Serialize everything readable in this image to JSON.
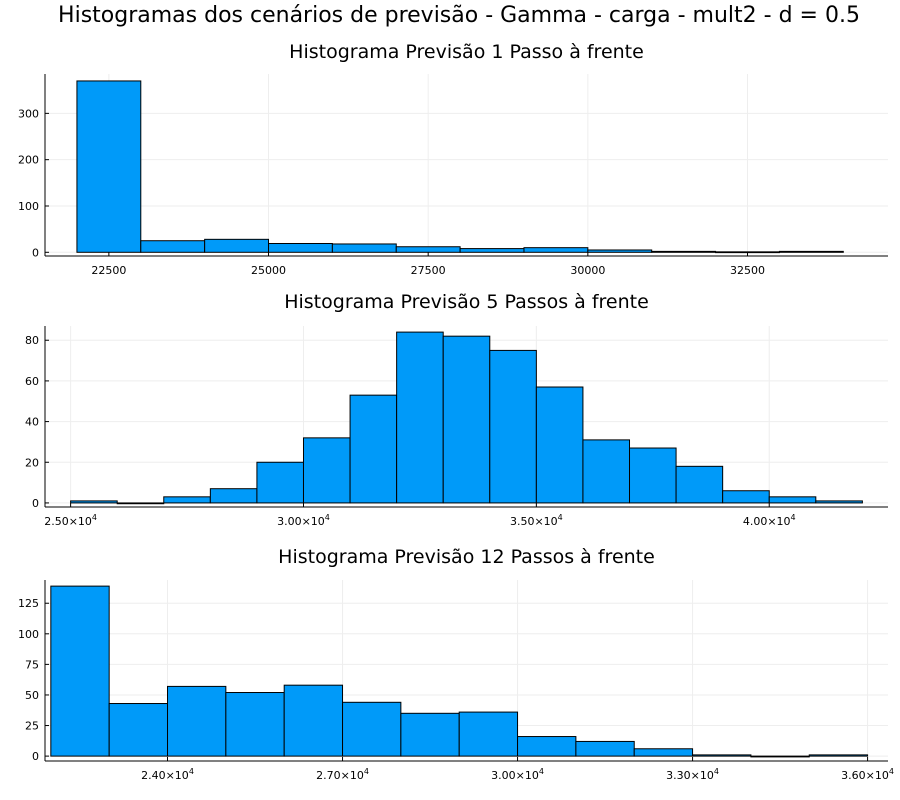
{
  "figure": {
    "suptitle": "Histogramas dos cenários de previsão - Gamma - carga - mult2 - d = 0.5",
    "bar_color": "#009AF9",
    "bar_edge": "#000000",
    "grid_color": "#EEEEEE"
  },
  "chart_data": [
    {
      "type": "bar",
      "title": "Histograma Previsão 1 Passo à frente",
      "xlabel": "",
      "ylabel": "",
      "xlim": [
        21500,
        34700
      ],
      "ylim": [
        -8,
        385
      ],
      "x_ticks": [
        22500,
        25000,
        27500,
        30000,
        32500
      ],
      "x_tick_labels": [
        "22500",
        "25000",
        "27500",
        "30000",
        "32500"
      ],
      "x_tick_format": "plain",
      "y_ticks": [
        0,
        100,
        200,
        300
      ],
      "grid": true,
      "bins": [
        {
          "x0": 22000,
          "x1": 23000,
          "count": 370
        },
        {
          "x0": 23000,
          "x1": 24000,
          "count": 25
        },
        {
          "x0": 24000,
          "x1": 25000,
          "count": 28
        },
        {
          "x0": 25000,
          "x1": 26000,
          "count": 19
        },
        {
          "x0": 26000,
          "x1": 27000,
          "count": 18
        },
        {
          "x0": 27000,
          "x1": 28000,
          "count": 12
        },
        {
          "x0": 28000,
          "x1": 29000,
          "count": 8
        },
        {
          "x0": 29000,
          "x1": 30000,
          "count": 10
        },
        {
          "x0": 30000,
          "x1": 31000,
          "count": 5
        },
        {
          "x0": 31000,
          "x1": 32000,
          "count": 2
        },
        {
          "x0": 32000,
          "x1": 33000,
          "count": 1
        },
        {
          "x0": 33000,
          "x1": 34000,
          "count": 2
        }
      ]
    },
    {
      "type": "bar",
      "title": "Histograma Previsão 5 Passos à frente",
      "xlabel": "",
      "ylabel": "",
      "xlim": [
        24450,
        42550
      ],
      "ylim": [
        -2,
        87
      ],
      "x_ticks": [
        25000,
        30000,
        35000,
        40000
      ],
      "x_tick_labels": [
        "2.50×10",
        "3.00×10",
        "3.50×10",
        "4.00×10"
      ],
      "x_tick_exponent": "4",
      "x_tick_format": "sci",
      "y_ticks": [
        0,
        20,
        40,
        60,
        80
      ],
      "grid": true,
      "bins": [
        {
          "x0": 25000,
          "x1": 26000,
          "count": 1
        },
        {
          "x0": 26000,
          "x1": 27000,
          "count": 0
        },
        {
          "x0": 27000,
          "x1": 28000,
          "count": 3
        },
        {
          "x0": 28000,
          "x1": 29000,
          "count": 7
        },
        {
          "x0": 29000,
          "x1": 30000,
          "count": 20
        },
        {
          "x0": 30000,
          "x1": 31000,
          "count": 32
        },
        {
          "x0": 31000,
          "x1": 32000,
          "count": 53
        },
        {
          "x0": 32000,
          "x1": 33000,
          "count": 84
        },
        {
          "x0": 33000,
          "x1": 34000,
          "count": 82
        },
        {
          "x0": 34000,
          "x1": 35000,
          "count": 75
        },
        {
          "x0": 35000,
          "x1": 36000,
          "count": 57
        },
        {
          "x0": 36000,
          "x1": 37000,
          "count": 31
        },
        {
          "x0": 37000,
          "x1": 38000,
          "count": 27
        },
        {
          "x0": 38000,
          "x1": 39000,
          "count": 18
        },
        {
          "x0": 39000,
          "x1": 40000,
          "count": 6
        },
        {
          "x0": 40000,
          "x1": 41000,
          "count": 3
        },
        {
          "x0": 41000,
          "x1": 42000,
          "count": 1
        }
      ]
    },
    {
      "type": "bar",
      "title": "Histograma Previsão 12 Passos à frente",
      "xlabel": "",
      "ylabel": "",
      "xlim": [
        21900,
        36350
      ],
      "ylim": [
        -4,
        144
      ],
      "x_ticks": [
        24000,
        27000,
        30000,
        33000,
        36000
      ],
      "x_tick_labels": [
        "2.40×10",
        "2.70×10",
        "3.00×10",
        "3.30×10",
        "3.60×10"
      ],
      "x_tick_exponent": "4",
      "x_tick_format": "sci",
      "y_ticks": [
        0,
        25,
        50,
        75,
        100,
        125
      ],
      "grid": true,
      "bins": [
        {
          "x0": 22000,
          "x1": 23000,
          "count": 139
        },
        {
          "x0": 23000,
          "x1": 24000,
          "count": 43
        },
        {
          "x0": 24000,
          "x1": 25000,
          "count": 57
        },
        {
          "x0": 25000,
          "x1": 26000,
          "count": 52
        },
        {
          "x0": 26000,
          "x1": 27000,
          "count": 58
        },
        {
          "x0": 27000,
          "x1": 28000,
          "count": 44
        },
        {
          "x0": 28000,
          "x1": 29000,
          "count": 35
        },
        {
          "x0": 29000,
          "x1": 30000,
          "count": 36
        },
        {
          "x0": 30000,
          "x1": 31000,
          "count": 16
        },
        {
          "x0": 31000,
          "x1": 32000,
          "count": 12
        },
        {
          "x0": 32000,
          "x1": 33000,
          "count": 6
        },
        {
          "x0": 33000,
          "x1": 34000,
          "count": 1
        },
        {
          "x0": 34000,
          "x1": 35000,
          "count": 0
        },
        {
          "x0": 35000,
          "x1": 36000,
          "count": 1
        }
      ]
    }
  ]
}
